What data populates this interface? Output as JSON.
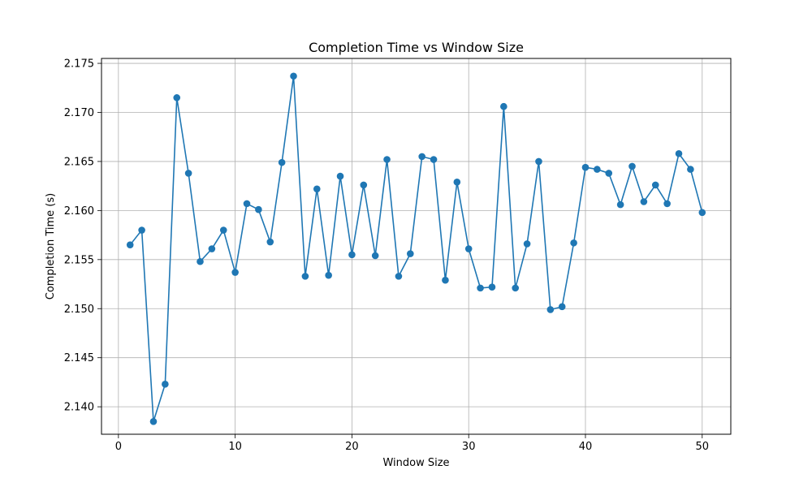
{
  "chart_data": {
    "type": "line",
    "title": "Completion Time vs Window Size",
    "xlabel": "Window Size",
    "ylabel": "Completion Time (s)",
    "xlim": [
      -1.45,
      52.45
    ],
    "ylim": [
      2.1372,
      2.1755
    ],
    "xticks": [
      0,
      10,
      20,
      30,
      40,
      50
    ],
    "yticks": [
      2.14,
      2.145,
      2.15,
      2.155,
      2.16,
      2.165,
      2.17,
      2.175
    ],
    "ytick_labels": [
      "2.140",
      "2.145",
      "2.150",
      "2.155",
      "2.160",
      "2.165",
      "2.170",
      "2.175"
    ],
    "grid": true,
    "marker": "circle",
    "series": [
      {
        "color": "#1f77b4",
        "x": [
          1,
          2,
          3,
          4,
          5,
          6,
          7,
          8,
          9,
          10,
          11,
          12,
          13,
          14,
          15,
          16,
          17,
          18,
          19,
          20,
          21,
          22,
          23,
          24,
          25,
          26,
          27,
          28,
          29,
          30,
          31,
          32,
          33,
          34,
          35,
          36,
          37,
          38,
          39,
          40,
          41,
          42,
          43,
          44,
          45,
          46,
          47,
          48,
          49,
          50
        ],
        "y": [
          2.1565,
          2.158,
          2.1385,
          2.1423,
          2.1715,
          2.1638,
          2.1548,
          2.1561,
          2.158,
          2.1537,
          2.1607,
          2.1601,
          2.1568,
          2.1649,
          2.1737,
          2.1533,
          2.1622,
          2.1534,
          2.1635,
          2.1555,
          2.1626,
          2.1554,
          2.1652,
          2.1533,
          2.1556,
          2.1655,
          2.1652,
          2.1529,
          2.1629,
          2.1561,
          2.1521,
          2.1522,
          2.1706,
          2.1521,
          2.1566,
          2.165,
          2.1499,
          2.1502,
          2.1567,
          2.1644,
          2.1642,
          2.1638,
          2.1606,
          2.1645,
          2.1609,
          2.1626,
          2.1607,
          2.1658,
          2.1642,
          2.1598
        ]
      }
    ]
  }
}
